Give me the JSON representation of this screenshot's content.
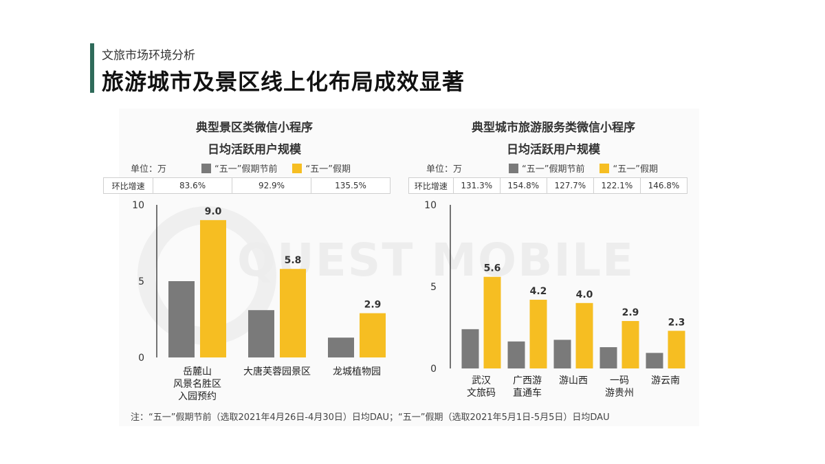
{
  "header": {
    "subtitle": "文旅市场环境分析",
    "title": "旅游城市及景区线上化布局成效显著"
  },
  "colors": {
    "accent": "#2f6b5a",
    "pre_holiday": "#7a7a7a",
    "holiday": "#f6be22"
  },
  "watermark": "QUEST MOBILE",
  "legend": {
    "pre_label": "“五一”假期节前",
    "holiday_label": "“五一”假期"
  },
  "unit_label": "单位：万",
  "growth_label": "环比增速",
  "note": "注：“五一”假期节前（选取2021年4月26日-4月30日）日均DAU；“五一”假期（选取2021年5月1日-5月5日）日均DAU",
  "chart_data": [
    {
      "type": "bar",
      "title_line1": "典型景区类微信小程序",
      "title_line2": "日均活跃用户规模",
      "categories": [
        [
          "岳麓山",
          "风景名胜区",
          "入园预约"
        ],
        [
          "大唐芙蓉园景区"
        ],
        [
          "龙城植物园"
        ]
      ],
      "series": [
        {
          "name": "“五一”假期节前",
          "values": [
            5.0,
            3.1,
            1.3
          ]
        },
        {
          "name": "“五一”假期",
          "values": [
            9.0,
            5.8,
            2.9
          ]
        }
      ],
      "value_labels": [
        "9.0",
        "5.8",
        "2.9"
      ],
      "growth": [
        "83.6%",
        "92.9%",
        "135.5%"
      ],
      "ylim": [
        0,
        10
      ],
      "yticks": [
        "0",
        "5",
        "10"
      ]
    },
    {
      "type": "bar",
      "title_line1": "典型城市旅游服务类微信小程序",
      "title_line2": "日均活跃用户规模",
      "categories": [
        [
          "武汉",
          "文旅码"
        ],
        [
          "广西游",
          "直通车"
        ],
        [
          "游山西"
        ],
        [
          "一码",
          "游贵州"
        ],
        [
          "游云南"
        ]
      ],
      "series": [
        {
          "name": "“五一”假期节前",
          "values": [
            2.4,
            1.65,
            1.75,
            1.3,
            0.95
          ]
        },
        {
          "name": "“五一”假期",
          "values": [
            5.6,
            4.2,
            4.0,
            2.9,
            2.3
          ]
        }
      ],
      "value_labels": [
        "5.6",
        "4.2",
        "4.0",
        "2.9",
        "2.3"
      ],
      "growth": [
        "131.3%",
        "154.8%",
        "127.7%",
        "122.1%",
        "146.8%"
      ],
      "ylim": [
        0,
        10
      ],
      "yticks": [
        "0",
        "5",
        "10"
      ]
    }
  ]
}
